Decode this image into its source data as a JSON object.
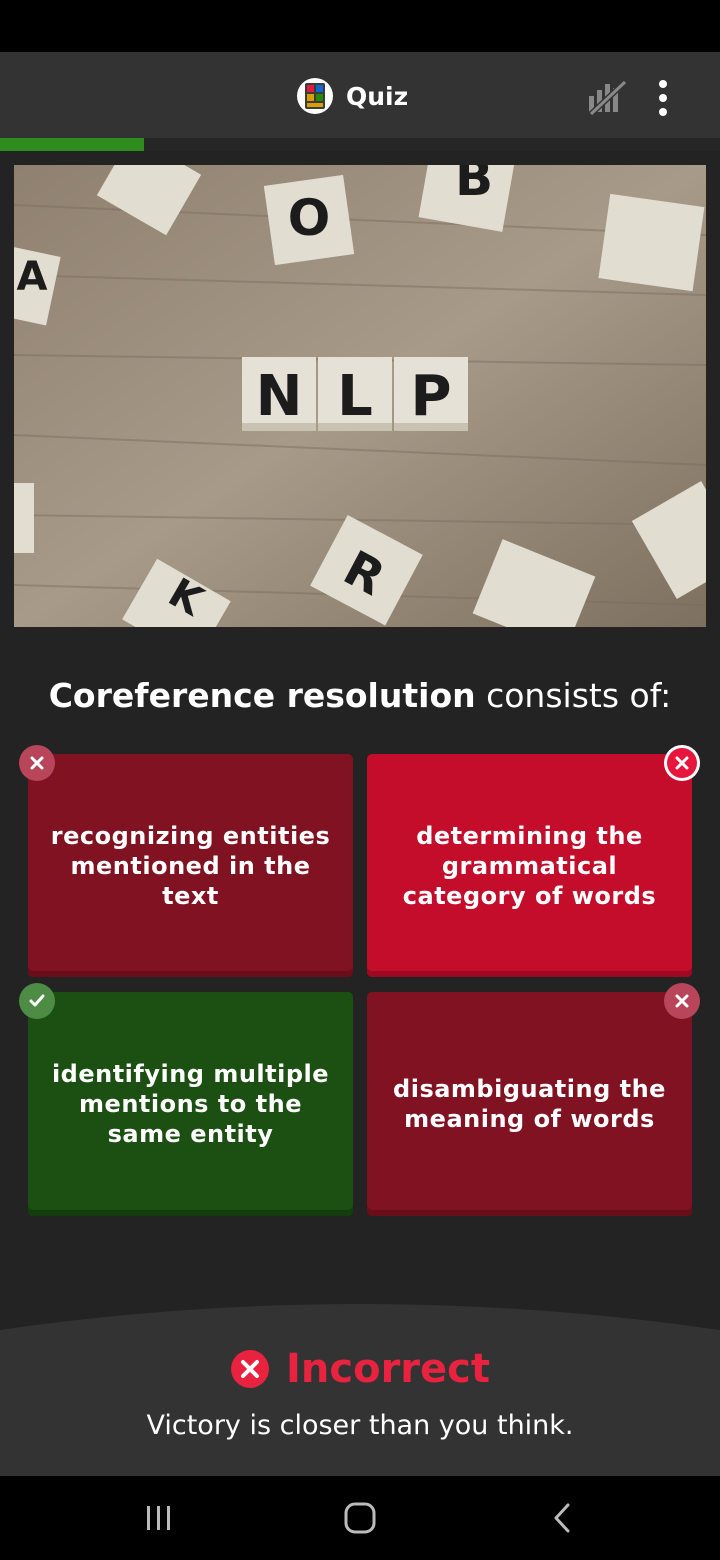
{
  "app": {
    "title": "Quiz"
  },
  "progress": {
    "fraction": 0.2
  },
  "question": {
    "bold": "Coreference resolution",
    "rest": " consists of:",
    "image_letters": [
      "N",
      "L",
      "P"
    ]
  },
  "answers": [
    {
      "text": "recognizing entities mentioned in the text",
      "state": "incorrect"
    },
    {
      "text": "determining the grammatical category of words",
      "state": "selected-incorrect"
    },
    {
      "text": "identifying multiple mentions to the same entity",
      "state": "correct"
    },
    {
      "text": "disambiguating the meaning of words",
      "state": "incorrect"
    }
  ],
  "feedback": {
    "title": "Incorrect",
    "message": "Victory is closer than you think."
  },
  "colors": {
    "correct": "#1b5012",
    "incorrect": "#801222",
    "selected": "#c40c2b",
    "progress": "#2e8b1e"
  }
}
